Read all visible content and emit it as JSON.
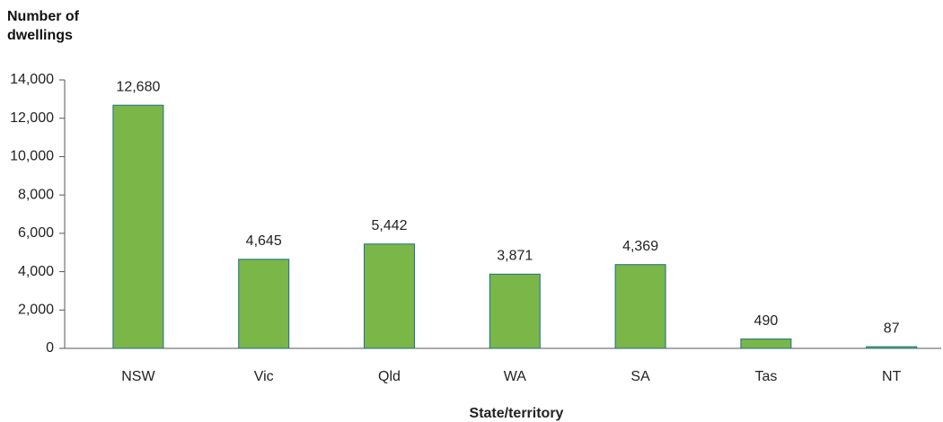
{
  "chart_data": {
    "type": "bar",
    "y_label": "Number of dwellings",
    "x_label": "State/territory",
    "categories": [
      "NSW",
      "Vic",
      "Qld",
      "WA",
      "SA",
      "Tas",
      "NT"
    ],
    "values": [
      12680,
      4645,
      5442,
      3871,
      4369,
      490,
      87
    ],
    "value_labels": [
      "12,680",
      "4,645",
      "5,442",
      "3,871",
      "4,369",
      "490",
      "87"
    ],
    "color": "#7ab648",
    "ylim": [
      0,
      14000
    ],
    "yticks": [
      0,
      {
        "value": 2000,
        "label": "2,000"
      },
      {
        "value": 4000,
        "label": "4,000"
      },
      {
        "value": 6000,
        "label": "6,000"
      },
      {
        "value": 8000,
        "label": "8,000"
      },
      {
        "value": 10000,
        "label": "10,000"
      },
      {
        "value": 12000,
        "label": "12,000"
      },
      {
        "value": 14000,
        "label": "14,000"
      }
    ],
    "grid": false
  }
}
